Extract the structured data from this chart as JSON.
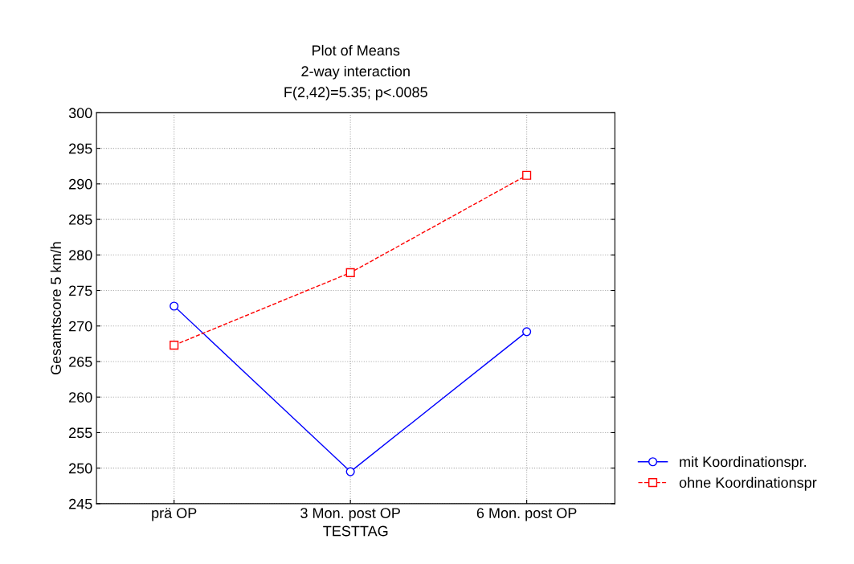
{
  "chart_data": {
    "type": "line",
    "title": "Plot of Means",
    "subtitle": "2-way interaction\nF(2,42)=5.35; p<.0085",
    "xlabel": "TESTTAG",
    "ylabel": "Gesamtscore 5 km/h",
    "categories": [
      "prä OP",
      "3 Mon. post OP",
      "6 Mon. post OP"
    ],
    "series": [
      {
        "name": "mit Koordinationspr.",
        "color": "#0000ff",
        "values": [
          272.8,
          249.5,
          269.2
        ],
        "marker": "circle",
        "line_style": "solid"
      },
      {
        "name": "ohne Koordinationspr",
        "color": "#ff0000",
        "values": [
          267.3,
          277.5,
          291.2
        ],
        "marker": "square",
        "line_style": "dashed"
      }
    ],
    "ylim": [
      245,
      300
    ],
    "yticks": [
      245,
      250,
      255,
      260,
      265,
      270,
      275,
      280,
      285,
      290,
      295,
      300
    ],
    "grid": true,
    "legend": "bottom right"
  }
}
